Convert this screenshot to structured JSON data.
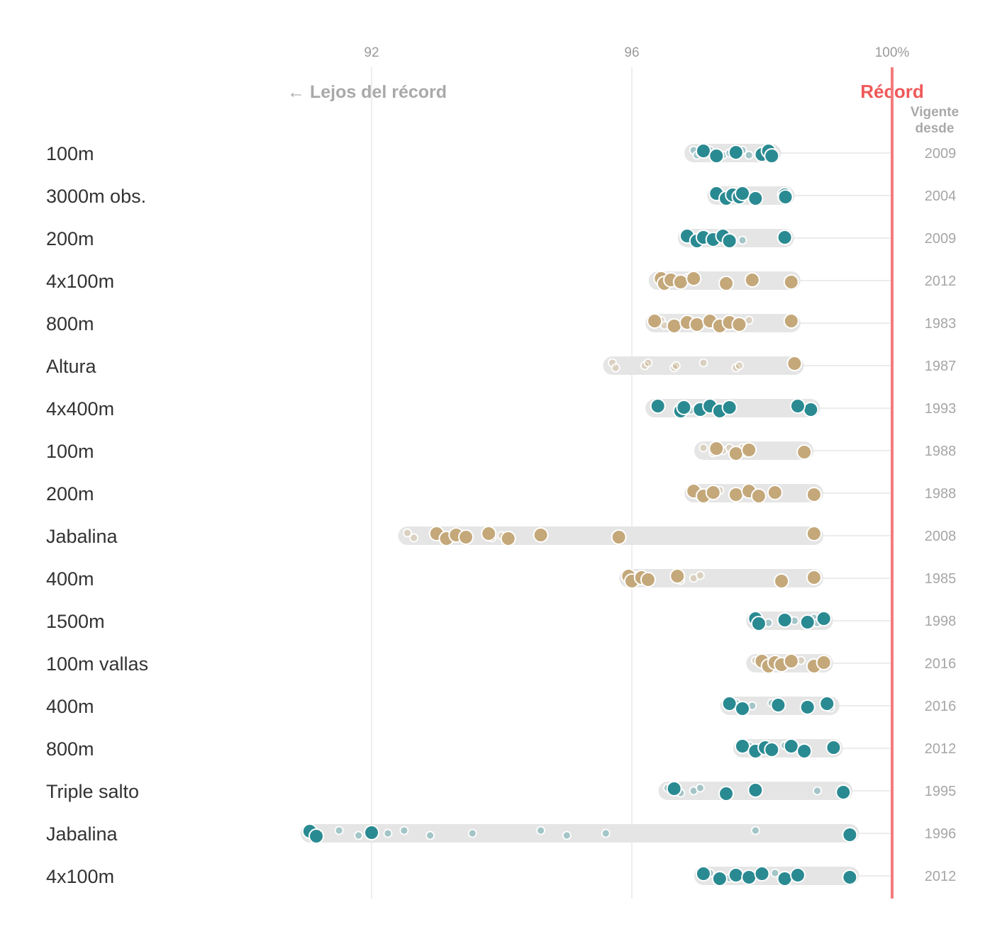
{
  "chart_data": {
    "type": "scatter",
    "x_axis": {
      "ticks": [
        {
          "value": 92,
          "label": "92"
        },
        {
          "value": 96,
          "label": "96"
        },
        {
          "value": 100,
          "label": "100%"
        }
      ],
      "range": [
        90.8,
        100
      ]
    },
    "header_left": "← Lejos del récord",
    "header_right": "Récord",
    "column_header": [
      "Vigente",
      "desde"
    ],
    "colors": {
      "men": "#2a8a92",
      "women": "#c4a87a",
      "record_line": "#f37c7c",
      "range_bar": "#e5e5e5",
      "gridline": "#e2e2e2"
    },
    "rows": [
      {
        "label": "100m",
        "group": "men",
        "year": "2009",
        "big": [
          97.1,
          97.3,
          97.6,
          98.0,
          98.1,
          98.15
        ],
        "small": [
          96.95,
          97.0,
          97.05,
          97.2,
          97.4,
          97.5,
          97.7,
          97.8
        ]
      },
      {
        "label": "3000m obs.",
        "group": "men",
        "year": "2004",
        "big": [
          97.3,
          97.45,
          97.55,
          97.65,
          97.7,
          97.9,
          98.35,
          98.36
        ],
        "small": [
          97.35,
          97.4,
          97.5,
          97.6
        ]
      },
      {
        "label": "200m",
        "group": "men",
        "year": "2009",
        "big": [
          96.85,
          97.0,
          97.1,
          97.25,
          97.4,
          97.5,
          98.35
        ],
        "small": [
          96.9,
          96.95,
          97.05,
          97.15,
          97.2,
          97.3,
          97.35,
          97.7
        ]
      },
      {
        "label": "4x100m",
        "group": "women",
        "year": "2012",
        "big": [
          96.45,
          96.5,
          96.6,
          96.75,
          96.95,
          97.45,
          97.85,
          98.45
        ],
        "small": [
          96.4,
          96.55,
          96.7,
          96.85
        ]
      },
      {
        "label": "800m",
        "group": "women",
        "year": "1983",
        "big": [
          96.35,
          96.65,
          96.85,
          97.0,
          97.2,
          97.35,
          97.5,
          97.65,
          98.45
        ],
        "small": [
          96.45,
          96.5,
          97.3,
          97.8
        ]
      },
      {
        "label": "Altura",
        "group": "women",
        "year": "1987",
        "big": [
          98.5
        ],
        "small": [
          95.7,
          95.75,
          96.2,
          96.25,
          96.65,
          96.68,
          97.1,
          97.6,
          97.65
        ]
      },
      {
        "label": "4x400m",
        "group": "men",
        "year": "1993",
        "big": [
          96.4,
          96.75,
          96.8,
          97.05,
          97.2,
          97.35,
          97.5,
          98.75,
          98.55
        ],
        "small": [
          96.35,
          96.9,
          97.0,
          97.25
        ]
      },
      {
        "label": "100m",
        "group": "women",
        "year": "1988",
        "big": [
          97.3,
          97.6,
          97.8,
          98.65
        ],
        "small": [
          97.1,
          97.25,
          97.4,
          97.5,
          97.6,
          97.65,
          97.7,
          97.75,
          97.85
        ]
      },
      {
        "label": "200m",
        "group": "women",
        "year": "1988",
        "big": [
          96.95,
          97.1,
          97.25,
          97.6,
          97.8,
          97.95,
          98.2,
          98.8
        ],
        "small": [
          97.0,
          97.05,
          97.15,
          97.35,
          97.65
        ]
      },
      {
        "label": "Jabalina",
        "group": "women",
        "year": "2008",
        "big": [
          93.0,
          93.15,
          93.3,
          93.45,
          93.8,
          94.1,
          94.6,
          95.8,
          98.8
        ],
        "small": [
          92.55,
          92.65,
          93.05,
          93.75,
          93.85,
          94.0
        ]
      },
      {
        "label": "400m",
        "group": "women",
        "year": "1985",
        "big": [
          95.95,
          96.0,
          96.15,
          96.25,
          96.7,
          98.3,
          98.8
        ],
        "small": [
          96.05,
          96.75,
          96.95,
          97.05
        ]
      },
      {
        "label": "1500m",
        "group": "men",
        "year": "1998",
        "big": [
          97.9,
          97.95,
          98.35,
          98.7,
          98.95
        ],
        "small": [
          97.95,
          98.1,
          98.5,
          98.8,
          98.85
        ]
      },
      {
        "label": "100m vallas",
        "group": "women",
        "year": "2016",
        "big": [
          98.0,
          98.1,
          98.2,
          98.3,
          98.45,
          98.8,
          98.95
        ],
        "small": [
          97.9,
          98.05,
          98.15,
          98.6,
          98.85
        ]
      },
      {
        "label": "400m",
        "group": "men",
        "year": "2016",
        "big": [
          97.5,
          97.7,
          98.25,
          98.7,
          99.0
        ],
        "small": [
          97.6,
          97.75,
          97.85,
          98.15,
          99.05
        ]
      },
      {
        "label": "800m",
        "group": "men",
        "year": "2012",
        "big": [
          97.7,
          97.9,
          98.05,
          98.15,
          98.45,
          98.65,
          99.1
        ],
        "small": [
          97.8,
          98.0,
          98.1,
          98.35
        ]
      },
      {
        "label": "Triple salto",
        "group": "men",
        "year": "1995",
        "big": [
          96.65,
          97.45,
          97.9,
          99.25
        ],
        "small": [
          96.55,
          96.75,
          96.95,
          97.05,
          97.4,
          98.85
        ]
      },
      {
        "label": "Jabalina",
        "group": "men",
        "year": "1996",
        "big": [
          91.05,
          91.15,
          92.0,
          99.35
        ],
        "small": [
          91.5,
          91.8,
          92.25,
          92.5,
          92.9,
          93.55,
          94.6,
          95.0,
          95.6,
          97.9
        ]
      },
      {
        "label": "4x100m",
        "group": "men",
        "year": "2012",
        "big": [
          97.1,
          97.35,
          97.6,
          97.8,
          98.0,
          98.35,
          98.55,
          99.35
        ],
        "small": [
          97.2,
          97.5,
          97.7,
          98.2,
          98.3
        ]
      }
    ]
  }
}
